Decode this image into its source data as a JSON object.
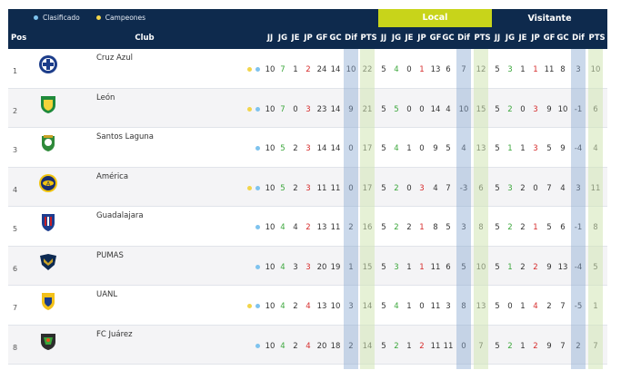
{
  "legend": {
    "clasificado": "Clasificado",
    "campeones": "Campeones"
  },
  "groups": {
    "local": "Local",
    "visitante": "Visitante"
  },
  "headers": {
    "pos": "Pos",
    "club": "Club",
    "overall": [
      "JJ",
      "JG",
      "JE",
      "JP",
      "GF",
      "GC",
      "Dif",
      "PTS"
    ],
    "local": [
      "JJ",
      "JG",
      "JE",
      "JP",
      "GF",
      "GC",
      "Dif",
      "PTS"
    ],
    "visitante": [
      "JJ",
      "JG",
      "JE",
      "JP",
      "GF",
      "GC",
      "Dif",
      "PTS"
    ]
  },
  "colors": {
    "navy": "#0e2a4d",
    "lime": "#c8d41a",
    "win": "#3aa63a",
    "loss": "#d62b2b",
    "clasificado": "#7ec3ee",
    "campeones": "#f2d54b"
  },
  "rows": [
    {
      "pos": "1",
      "club": "Cruz Azul",
      "logo": "cruz-azul-crest",
      "marks": [
        "yellow",
        "blue"
      ],
      "overall": [
        "10",
        "7",
        "1",
        "2",
        "24",
        "14",
        "10",
        "22"
      ],
      "local": [
        "5",
        "4",
        "0",
        "1",
        "13",
        "6",
        "7",
        "12"
      ],
      "visitante": [
        "5",
        "3",
        "1",
        "1",
        "11",
        "8",
        "3",
        "10"
      ]
    },
    {
      "pos": "2",
      "club": "León",
      "logo": "leon-crest",
      "marks": [
        "yellow",
        "blue"
      ],
      "overall": [
        "10",
        "7",
        "0",
        "3",
        "23",
        "14",
        "9",
        "21"
      ],
      "local": [
        "5",
        "5",
        "0",
        "0",
        "14",
        "4",
        "10",
        "15"
      ],
      "visitante": [
        "5",
        "2",
        "0",
        "3",
        "9",
        "10",
        "-1",
        "6"
      ]
    },
    {
      "pos": "3",
      "club": "Santos Laguna",
      "logo": "santos-crest",
      "marks": [
        "blue"
      ],
      "overall": [
        "10",
        "5",
        "2",
        "3",
        "14",
        "14",
        "0",
        "17"
      ],
      "local": [
        "5",
        "4",
        "1",
        "0",
        "9",
        "5",
        "4",
        "13"
      ],
      "visitante": [
        "5",
        "1",
        "1",
        "3",
        "5",
        "9",
        "-4",
        "4"
      ]
    },
    {
      "pos": "4",
      "club": "América",
      "logo": "america-crest",
      "marks": [
        "yellow",
        "blue"
      ],
      "overall": [
        "10",
        "5",
        "2",
        "3",
        "11",
        "11",
        "0",
        "17"
      ],
      "local": [
        "5",
        "2",
        "0",
        "3",
        "4",
        "7",
        "-3",
        "6"
      ],
      "visitante": [
        "5",
        "3",
        "2",
        "0",
        "7",
        "4",
        "3",
        "11"
      ]
    },
    {
      "pos": "5",
      "club": "Guadalajara",
      "logo": "chivas-crest",
      "marks": [
        "blue"
      ],
      "overall": [
        "10",
        "4",
        "4",
        "2",
        "13",
        "11",
        "2",
        "16"
      ],
      "local": [
        "5",
        "2",
        "2",
        "1",
        "8",
        "5",
        "3",
        "8"
      ],
      "visitante": [
        "5",
        "2",
        "2",
        "1",
        "5",
        "6",
        "-1",
        "8"
      ]
    },
    {
      "pos": "6",
      "club": "PUMAS",
      "logo": "pumas-crest",
      "marks": [
        "blue"
      ],
      "overall": [
        "10",
        "4",
        "3",
        "3",
        "20",
        "19",
        "1",
        "15"
      ],
      "local": [
        "5",
        "3",
        "1",
        "1",
        "11",
        "6",
        "5",
        "10"
      ],
      "visitante": [
        "5",
        "1",
        "2",
        "2",
        "9",
        "13",
        "-4",
        "5"
      ]
    },
    {
      "pos": "7",
      "club": "UANL",
      "logo": "tigres-crest",
      "marks": [
        "yellow",
        "blue"
      ],
      "overall": [
        "10",
        "4",
        "2",
        "4",
        "13",
        "10",
        "3",
        "14"
      ],
      "local": [
        "5",
        "4",
        "1",
        "0",
        "11",
        "3",
        "8",
        "13"
      ],
      "visitante": [
        "5",
        "0",
        "1",
        "4",
        "2",
        "7",
        "-5",
        "1"
      ]
    },
    {
      "pos": "8",
      "club": "FC Juárez",
      "logo": "juarez-crest",
      "marks": [
        "blue"
      ],
      "overall": [
        "10",
        "4",
        "2",
        "4",
        "20",
        "18",
        "2",
        "14"
      ],
      "local": [
        "5",
        "2",
        "1",
        "2",
        "11",
        "11",
        "0",
        "7"
      ],
      "visitante": [
        "5",
        "2",
        "1",
        "2",
        "9",
        "7",
        "2",
        "7"
      ]
    }
  ]
}
